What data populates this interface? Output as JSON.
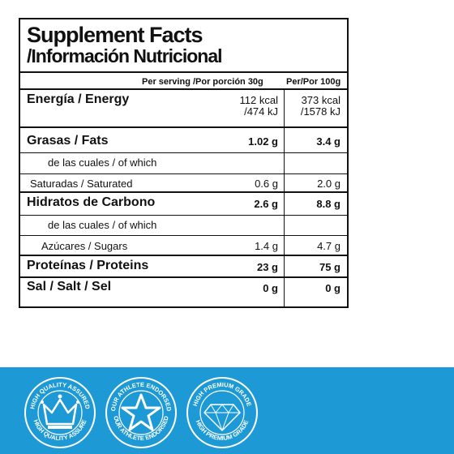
{
  "title": "Supplement Facts",
  "subtitle": "/Información Nutricional",
  "header": {
    "serving": "Per serving /Por porción 30g",
    "per100": "Per/Por 100g"
  },
  "rows": {
    "energy": {
      "label": "Energía / Energy",
      "serving_kcal": "112 kcal",
      "serving_kj": "/474 kJ",
      "per100_kcal": "373 kcal",
      "per100_kj": "/1578 kJ"
    },
    "fats": {
      "label": "Grasas / Fats",
      "serving": "1.02 g",
      "per100": "3.4 g"
    },
    "fats_of_which": {
      "label": "de las cuales / of which"
    },
    "saturated": {
      "label": "Saturadas / Saturated",
      "serving": "0.6 g",
      "per100": "2.0 g"
    },
    "carbs": {
      "label": "Hidratos de Carbono",
      "serving": "2.6 g",
      "per100": "8.8 g"
    },
    "carbs_of_which": {
      "label": "de las cuales / of which"
    },
    "sugars": {
      "label": "Azúcares / Sugars",
      "serving": "1.4 g",
      "per100": "4.7 g"
    },
    "proteins": {
      "label": "Proteínas / Proteins",
      "serving": "23 g",
      "per100": "75 g"
    },
    "salt": {
      "label": "Sal / Salt / Sel",
      "serving": "0 g",
      "per100": "0 g"
    }
  },
  "badges": {
    "quality": {
      "icon": "crown-icon",
      "top_text": "HIGH QUALITY ASSURED",
      "bottom_text": "HIGH QUALITY ASSURE"
    },
    "athlete": {
      "icon": "star-icon",
      "top_text": "OUR ATHLETE ENDORSED",
      "bottom_text": "OUR ATHLETE ENDORSED"
    },
    "premium": {
      "icon": "diamond-icon",
      "top_text": "HIGH PREMIUM GRADE",
      "bottom_text": "HIGH PREMIUM GRADE"
    }
  },
  "colors": {
    "band": "#1d9ad6",
    "text": "#111111",
    "badge": "#ffffff"
  }
}
